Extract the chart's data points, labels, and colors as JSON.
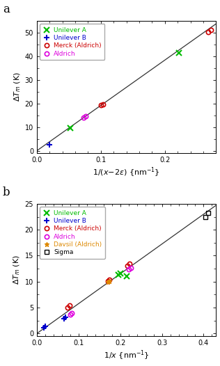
{
  "panel_a": {
    "xlabel": "1/(χ−2ε) {nm⁻¹}",
    "ylabel": "ΔT_m (K)",
    "xlim": [
      0,
      0.28
    ],
    "ylim": [
      -1,
      55
    ],
    "xticks": [
      0.0,
      0.1,
      0.2
    ],
    "yticks": [
      0,
      10,
      20,
      30,
      40,
      50
    ],
    "fit_x": [
      0,
      0.285
    ],
    "fit_slope": 192.0,
    "series": [
      {
        "label": "Unilever A",
        "color": "#00bb00",
        "marker": "x",
        "mfc": "none",
        "x": [
          0.052,
          0.222
        ],
        "y": [
          9.5,
          41.5
        ]
      },
      {
        "label": "Unilever B",
        "color": "#0000cc",
        "marker": "+",
        "mfc": "#0000cc",
        "x": [
          0.02
        ],
        "y": [
          2.5
        ]
      },
      {
        "label": "Merck (Aldrich)",
        "color": "#cc0000",
        "marker": "o",
        "mfc": "none",
        "x": [
          0.1,
          0.103,
          0.268,
          0.272
        ],
        "y": [
          19.2,
          19.6,
          50.2,
          51.2
        ]
      },
      {
        "label": "Aldrich",
        "color": "#dd00dd",
        "marker": "o",
        "mfc": "none",
        "x": [
          0.073,
          0.076
        ],
        "y": [
          14.0,
          14.5
        ]
      }
    ]
  },
  "panel_b": {
    "xlabel": "1/χ {nm⁻¹}",
    "ylabel": "ΔT_m (K)",
    "xlim": [
      0,
      0.43
    ],
    "ylim": [
      -0.5,
      25
    ],
    "xticks": [
      0.0,
      0.1,
      0.2,
      0.3,
      0.4
    ],
    "yticks": [
      0,
      5,
      10,
      15,
      20,
      25
    ],
    "fit_x": [
      0,
      0.435
    ],
    "fit_slope": 57.5,
    "series": [
      {
        "label": "Unilever A",
        "color": "#00bb00",
        "marker": "x",
        "mfc": "none",
        "x": [
          0.196,
          0.201,
          0.215
        ],
        "y": [
          11.3,
          11.6,
          11.0
        ]
      },
      {
        "label": "Unilever B",
        "color": "#0000cc",
        "marker": "+",
        "mfc": "#0000cc",
        "x": [
          0.017,
          0.02,
          0.065,
          0.068
        ],
        "y": [
          1.1,
          1.4,
          2.8,
          3.1
        ]
      },
      {
        "label": "Merck (Aldrich)",
        "color": "#cc0000",
        "marker": "o",
        "mfc": "none",
        "x": [
          0.073,
          0.078,
          0.17,
          0.174,
          0.218,
          0.223
        ],
        "y": [
          5.0,
          5.4,
          10.1,
          10.4,
          13.1,
          13.4
        ]
      },
      {
        "label": "Aldrich",
        "color": "#dd00dd",
        "marker": "o",
        "mfc": "none",
        "x": [
          0.08,
          0.083,
          0.22,
          0.225
        ],
        "y": [
          3.6,
          3.9,
          12.4,
          12.7
        ]
      },
      {
        "label": "Davsil (Aldrich)",
        "color": "#dd8800",
        "marker": "*",
        "mfc": "#dd8800",
        "x": [
          0.17,
          0.174
        ],
        "y": [
          9.9,
          10.1
        ]
      },
      {
        "label": "Sigma",
        "color": "#000000",
        "marker": "s",
        "mfc": "none",
        "x": [
          0.405,
          0.411
        ],
        "y": [
          22.4,
          23.2
        ]
      }
    ]
  },
  "figure_bg": "#ffffff"
}
